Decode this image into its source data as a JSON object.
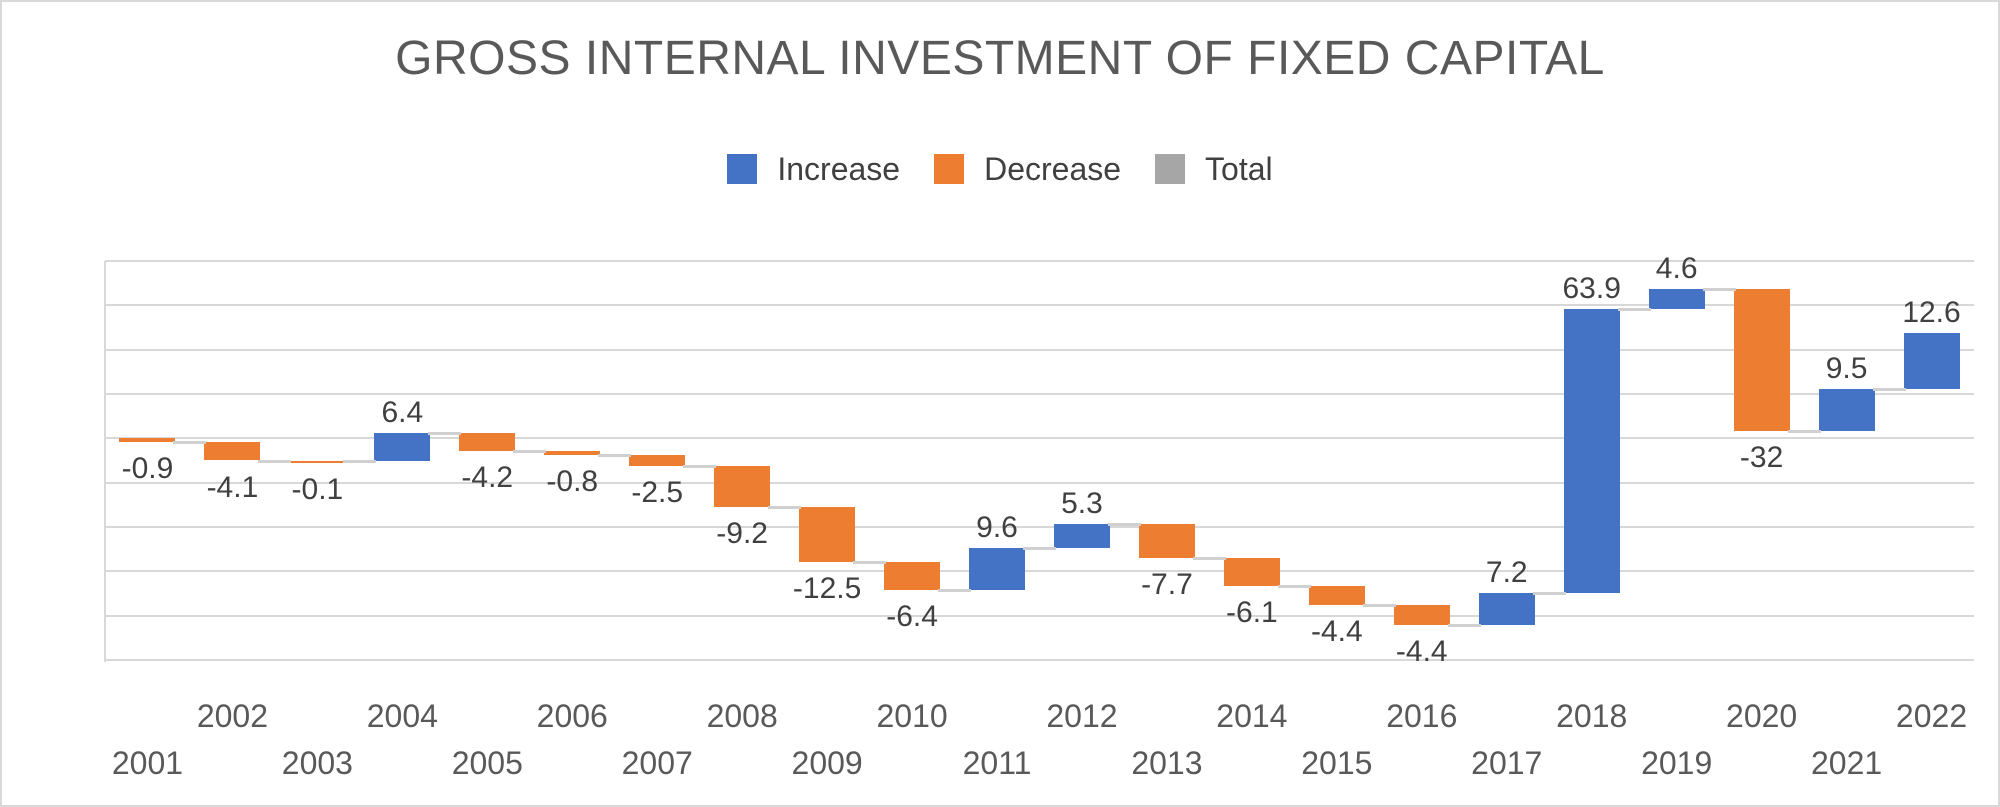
{
  "legend": [
    {
      "label": "Increase",
      "color": "#4472C4"
    },
    {
      "label": "Decrease",
      "color": "#ED7D31"
    },
    {
      "label": "Total",
      "color": "#A6A6A6"
    }
  ],
  "chart_data": {
    "type": "bar",
    "subtype": "waterfall",
    "title": "GROSS INTERNAL INVESTMENT OF FIXED CAPITAL",
    "categories": [
      "2001",
      "2002",
      "2003",
      "2004",
      "2005",
      "2006",
      "2007",
      "2008",
      "2009",
      "2010",
      "2011",
      "2012",
      "2013",
      "2014",
      "2015",
      "2016",
      "2017",
      "2018",
      "2019",
      "2020",
      "2021",
      "2022"
    ],
    "values": [
      -0.9,
      -4.1,
      -0.1,
      6.4,
      -4.2,
      -0.8,
      -2.5,
      -9.2,
      -12.5,
      -6.4,
      9.6,
      5.3,
      -7.7,
      -6.1,
      -4.4,
      -4.4,
      7.2,
      63.9,
      4.6,
      -32,
      9.5,
      12.6
    ],
    "start_value": 0,
    "xlabel": "",
    "ylabel": "",
    "ylim": [
      -50,
      40
    ],
    "grid_step": 10,
    "grid": true,
    "y_tick_labels_visible": false,
    "legend_position": "top",
    "x_label_layout": "staggered-two-rows",
    "colors": {
      "increase": "#4472C4",
      "decrease": "#ED7D31",
      "total": "#A6A6A6",
      "connector": "#D0D0D0",
      "gridline": "#D8D8D8",
      "data_label": "#404040",
      "axis_label": "#595959",
      "title": "#595959"
    }
  }
}
